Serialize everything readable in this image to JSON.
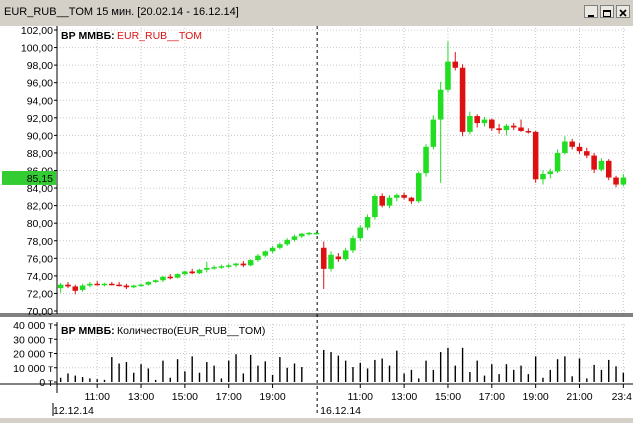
{
  "window": {
    "title": "EUR_RUB__TOM   15 мин.  [20.02.14 - 16.12.14]"
  },
  "price_panel": {
    "source_label": "ВР ММВБ:",
    "instrument": "EUR_RUB__TOM",
    "current_price": "85,15",
    "y_ticks": [
      "70,00",
      "72,00",
      "74,00",
      "76,00",
      "78,00",
      "80,00",
      "82,00",
      "84,00",
      "86,00",
      "88,00",
      "90,00",
      "92,00",
      "94,00",
      "96,00",
      "98,00",
      "100,00",
      "102,00"
    ]
  },
  "volume_panel": {
    "source_label": "ВР ММВБ:",
    "title": "Количество(EUR_RUB__TOM)",
    "y_ticks": [
      "0 т",
      "10 000 т",
      "20 000 т",
      "30 000 т",
      "40 000 т"
    ]
  },
  "x_axis": {
    "times_day1": [
      "11:00",
      "13:00",
      "15:00",
      "17:00",
      "19:00"
    ],
    "times_day2": [
      "11:00",
      "13:00",
      "15:00",
      "17:00",
      "19:00",
      "21:00",
      "23:4"
    ],
    "dates": [
      "12.12.14",
      "16.12.14"
    ]
  },
  "colors": {
    "up": "#22dd22",
    "down": "#dd1111",
    "price_badge": "#33cc33",
    "separator": "#000000"
  },
  "chart_data": {
    "type": "candlestick",
    "ylim": [
      70,
      102
    ],
    "volume_ylim": [
      0,
      40000
    ],
    "candles": [
      {
        "o": 72.6,
        "h": 73.2,
        "l": 72.1,
        "c": 73.0
      },
      {
        "o": 73.0,
        "h": 73.3,
        "l": 72.6,
        "c": 72.8
      },
      {
        "o": 72.8,
        "h": 73.0,
        "l": 71.9,
        "c": 72.3
      },
      {
        "o": 72.4,
        "h": 73.1,
        "l": 72.2,
        "c": 72.9
      },
      {
        "o": 72.9,
        "h": 73.3,
        "l": 72.7,
        "c": 73.1
      },
      {
        "o": 73.1,
        "h": 73.4,
        "l": 72.9,
        "c": 73.0
      },
      {
        "o": 73.0,
        "h": 73.2,
        "l": 72.8,
        "c": 73.1
      },
      {
        "o": 73.1,
        "h": 73.3,
        "l": 72.9,
        "c": 73.0
      },
      {
        "o": 73.0,
        "h": 73.3,
        "l": 72.8,
        "c": 72.9
      },
      {
        "o": 72.9,
        "h": 73.1,
        "l": 72.5,
        "c": 72.7
      },
      {
        "o": 72.7,
        "h": 73.0,
        "l": 72.6,
        "c": 72.9
      },
      {
        "o": 72.9,
        "h": 73.1,
        "l": 72.8,
        "c": 73.0
      },
      {
        "o": 73.0,
        "h": 73.4,
        "l": 72.9,
        "c": 73.3
      },
      {
        "o": 73.3,
        "h": 73.6,
        "l": 73.2,
        "c": 73.5
      },
      {
        "o": 73.5,
        "h": 74.0,
        "l": 73.3,
        "c": 73.9
      },
      {
        "o": 73.9,
        "h": 74.2,
        "l": 73.6,
        "c": 73.8
      },
      {
        "o": 73.8,
        "h": 74.3,
        "l": 73.7,
        "c": 74.2
      },
      {
        "o": 74.2,
        "h": 74.6,
        "l": 74.0,
        "c": 74.5
      },
      {
        "o": 74.5,
        "h": 74.8,
        "l": 74.2,
        "c": 74.3
      },
      {
        "o": 74.3,
        "h": 74.8,
        "l": 74.2,
        "c": 74.7
      },
      {
        "o": 74.7,
        "h": 75.6,
        "l": 74.4,
        "c": 74.9
      },
      {
        "o": 74.9,
        "h": 75.2,
        "l": 74.7,
        "c": 75.0
      },
      {
        "o": 75.0,
        "h": 75.3,
        "l": 74.8,
        "c": 75.1
      },
      {
        "o": 75.1,
        "h": 75.4,
        "l": 74.9,
        "c": 75.2
      },
      {
        "o": 75.2,
        "h": 75.5,
        "l": 75.0,
        "c": 75.4
      },
      {
        "o": 75.4,
        "h": 75.7,
        "l": 75.0,
        "c": 75.2
      },
      {
        "o": 75.2,
        "h": 75.9,
        "l": 75.1,
        "c": 75.8
      },
      {
        "o": 75.8,
        "h": 76.5,
        "l": 75.6,
        "c": 76.3
      },
      {
        "o": 76.3,
        "h": 76.9,
        "l": 76.1,
        "c": 76.8
      },
      {
        "o": 76.8,
        "h": 77.4,
        "l": 76.6,
        "c": 77.2
      },
      {
        "o": 77.2,
        "h": 77.8,
        "l": 77.0,
        "c": 77.6
      },
      {
        "o": 77.6,
        "h": 78.3,
        "l": 77.4,
        "c": 78.1
      },
      {
        "o": 78.1,
        "h": 78.7,
        "l": 77.9,
        "c": 78.5
      },
      {
        "o": 78.5,
        "h": 78.9,
        "l": 78.3,
        "c": 78.8
      },
      {
        "o": 78.8,
        "h": 79.0,
        "l": 78.6,
        "c": 78.9
      },
      {
        "o": 78.9,
        "h": 79.0,
        "l": 78.7,
        "c": 78.9
      },
      {
        "o": 77.2,
        "h": 77.9,
        "l": 72.5,
        "c": 74.8
      },
      {
        "o": 74.8,
        "h": 76.8,
        "l": 74.5,
        "c": 76.4
      },
      {
        "o": 76.2,
        "h": 76.6,
        "l": 75.6,
        "c": 75.9
      },
      {
        "o": 75.9,
        "h": 77.2,
        "l": 75.7,
        "c": 76.9
      },
      {
        "o": 76.9,
        "h": 78.6,
        "l": 76.6,
        "c": 78.3
      },
      {
        "o": 78.3,
        "h": 79.8,
        "l": 78.0,
        "c": 79.5
      },
      {
        "o": 79.5,
        "h": 81.0,
        "l": 79.2,
        "c": 80.7
      },
      {
        "o": 80.7,
        "h": 83.3,
        "l": 80.4,
        "c": 83.1
      },
      {
        "o": 83.1,
        "h": 83.4,
        "l": 81.8,
        "c": 82.0
      },
      {
        "o": 82.0,
        "h": 83.2,
        "l": 81.7,
        "c": 82.9
      },
      {
        "o": 82.9,
        "h": 83.4,
        "l": 82.5,
        "c": 83.2
      },
      {
        "o": 83.2,
        "h": 83.5,
        "l": 82.7,
        "c": 82.9
      },
      {
        "o": 82.9,
        "h": 83.0,
        "l": 82.2,
        "c": 82.5
      },
      {
        "o": 82.5,
        "h": 85.9,
        "l": 82.3,
        "c": 85.7
      },
      {
        "o": 85.7,
        "h": 89.0,
        "l": 85.3,
        "c": 88.7
      },
      {
        "o": 88.7,
        "h": 92.3,
        "l": 88.4,
        "c": 91.8
      },
      {
        "o": 91.8,
        "h": 96.1,
        "l": 84.6,
        "c": 95.2
      },
      {
        "o": 95.2,
        "h": 100.7,
        "l": 94.9,
        "c": 98.4
      },
      {
        "o": 98.4,
        "h": 99.5,
        "l": 97.4,
        "c": 97.7
      },
      {
        "o": 97.7,
        "h": 98.1,
        "l": 89.9,
        "c": 90.4
      },
      {
        "o": 90.4,
        "h": 92.7,
        "l": 90.1,
        "c": 92.2
      },
      {
        "o": 92.2,
        "h": 92.4,
        "l": 90.9,
        "c": 91.4
      },
      {
        "o": 91.4,
        "h": 92.1,
        "l": 91.0,
        "c": 91.8
      },
      {
        "o": 91.8,
        "h": 91.9,
        "l": 90.5,
        "c": 90.8
      },
      {
        "o": 90.8,
        "h": 91.3,
        "l": 90.2,
        "c": 90.6
      },
      {
        "o": 90.6,
        "h": 91.3,
        "l": 90.0,
        "c": 91.1
      },
      {
        "o": 91.1,
        "h": 91.4,
        "l": 90.6,
        "c": 90.9
      },
      {
        "o": 90.9,
        "h": 91.8,
        "l": 90.4,
        "c": 90.5
      },
      {
        "o": 90.5,
        "h": 90.8,
        "l": 90.2,
        "c": 90.4
      },
      {
        "o": 90.4,
        "h": 90.5,
        "l": 84.6,
        "c": 85.0
      },
      {
        "o": 85.0,
        "h": 86.0,
        "l": 84.4,
        "c": 85.6
      },
      {
        "o": 85.6,
        "h": 86.2,
        "l": 85.1,
        "c": 85.9
      },
      {
        "o": 85.9,
        "h": 88.4,
        "l": 85.7,
        "c": 88.0
      },
      {
        "o": 88.0,
        "h": 89.9,
        "l": 87.8,
        "c": 89.3
      },
      {
        "o": 89.3,
        "h": 89.6,
        "l": 88.4,
        "c": 88.7
      },
      {
        "o": 88.7,
        "h": 89.1,
        "l": 87.9,
        "c": 88.2
      },
      {
        "o": 88.2,
        "h": 88.6,
        "l": 87.4,
        "c": 87.7
      },
      {
        "o": 87.7,
        "h": 88.0,
        "l": 85.7,
        "c": 86.1
      },
      {
        "o": 86.1,
        "h": 87.4,
        "l": 85.9,
        "c": 87.1
      },
      {
        "o": 87.1,
        "h": 87.3,
        "l": 84.9,
        "c": 85.2
      },
      {
        "o": 85.2,
        "h": 85.4,
        "l": 84.1,
        "c": 84.4
      },
      {
        "o": 84.4,
        "h": 85.6,
        "l": 84.2,
        "c": 85.2
      }
    ],
    "volumes": [
      3000,
      6000,
      4500,
      3500,
      2500,
      2000,
      1500,
      17500,
      13000,
      14000,
      6500,
      12500,
      9500,
      1500,
      15000,
      3000,
      16000,
      7500,
      18000,
      6500,
      14000,
      11500,
      2500,
      15000,
      19500,
      6000,
      19000,
      11500,
      14500,
      5000,
      17500,
      10000,
      13000,
      10500,
      0,
      0,
      22500,
      21000,
      18500,
      15000,
      10500,
      13500,
      9500,
      15500,
      16500,
      11500,
      22000,
      6000,
      8500,
      2500,
      15000,
      8500,
      21000,
      24000,
      11500,
      24000,
      7000,
      15000,
      4500,
      12500,
      5500,
      12500,
      8500,
      11500,
      5500,
      18000,
      3000,
      8500,
      16000,
      18000,
      4000,
      16500,
      2500,
      12000,
      8500,
      15500,
      11000,
      6500
    ]
  }
}
